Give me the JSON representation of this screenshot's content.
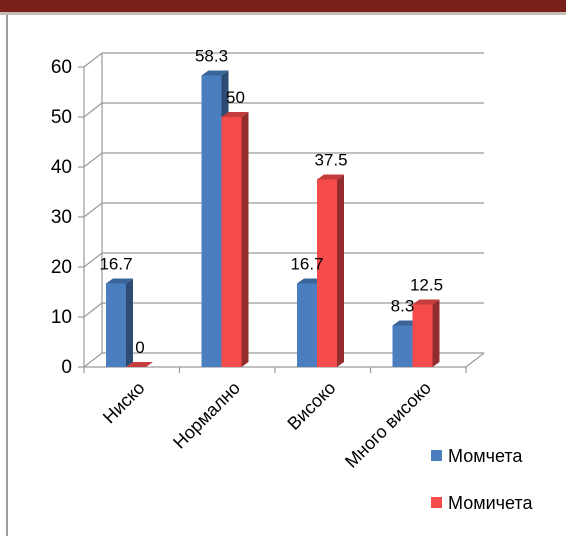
{
  "chart_data": {
    "type": "bar",
    "title": "",
    "xlabel": "",
    "ylabel": "",
    "categories": [
      "Ниско",
      "Нормално",
      "Високо",
      "Много високо"
    ],
    "series": [
      {
        "name": "Момчета",
        "color": "#4a7ebf",
        "values": [
          16.7,
          58.3,
          16.7,
          8.3
        ],
        "labels": [
          "16.7",
          "58.3",
          "16.7",
          "8.3"
        ]
      },
      {
        "name": "Момичета",
        "color": "#f54b4b",
        "values": [
          0,
          50,
          37.5,
          12.5
        ],
        "labels": [
          "0",
          "50",
          "37.5",
          "12.5"
        ]
      }
    ],
    "ylim": [
      0,
      60
    ],
    "yticks": [
      "0",
      "10",
      "20",
      "30",
      "40",
      "50",
      "60"
    ],
    "grid": true,
    "legend": "bottom-right",
    "three_d": true
  },
  "colors": {
    "header_bar": "#7a1f1a",
    "grid": "#9a9a9a",
    "frame": "#7f7f7f"
  }
}
